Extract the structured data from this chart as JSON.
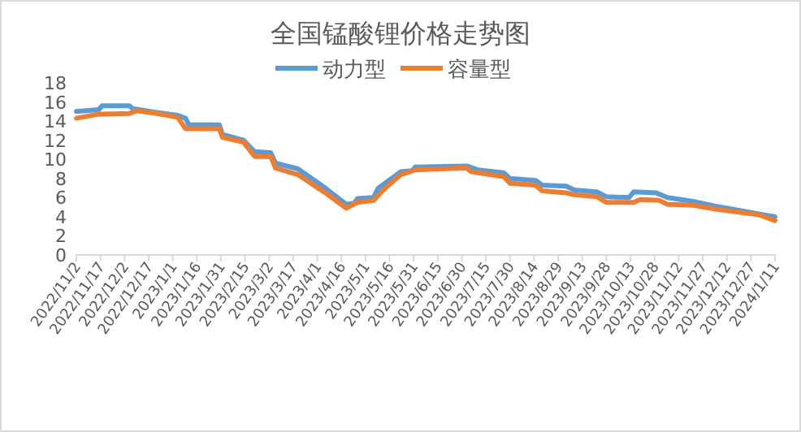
{
  "chart_data": {
    "type": "line",
    "title": "全国锰酸锂价格走势图",
    "legend": "top",
    "grid": false,
    "xlim": [
      "2022-11-02",
      "2024-01-11"
    ],
    "xticks": [
      {
        "value": "2022-11-02",
        "label": "2022/11/2"
      },
      {
        "value": "2022-11-17",
        "label": "2022/11/17"
      },
      {
        "value": "2022-12-02",
        "label": "2022/12/2"
      },
      {
        "value": "2022-12-17",
        "label": "2022/12/17"
      },
      {
        "value": "2023-01-01",
        "label": "2023/1/1"
      },
      {
        "value": "2023-01-16",
        "label": "2023/1/16"
      },
      {
        "value": "2023-01-31",
        "label": "2023/1/31"
      },
      {
        "value": "2023-02-15",
        "label": "2023/2/15"
      },
      {
        "value": "2023-03-02",
        "label": "2023/3/2"
      },
      {
        "value": "2023-03-17",
        "label": "2023/3/17"
      },
      {
        "value": "2023-04-01",
        "label": "2023/4/1"
      },
      {
        "value": "2023-04-16",
        "label": "2023/4/16"
      },
      {
        "value": "2023-05-01",
        "label": "2023/5/1"
      },
      {
        "value": "2023-05-16",
        "label": "2023/5/16"
      },
      {
        "value": "2023-05-31",
        "label": "2023/5/31"
      },
      {
        "value": "2023-06-15",
        "label": "2023/6/15"
      },
      {
        "value": "2023-06-30",
        "label": "2023/6/30"
      },
      {
        "value": "2023-07-15",
        "label": "2023/7/15"
      },
      {
        "value": "2023-07-30",
        "label": "2023/7/30"
      },
      {
        "value": "2023-08-14",
        "label": "2023/8/14"
      },
      {
        "value": "2023-08-29",
        "label": "2023/8/29"
      },
      {
        "value": "2023-09-13",
        "label": "2023/9/13"
      },
      {
        "value": "2023-09-28",
        "label": "2023/9/28"
      },
      {
        "value": "2023-10-13",
        "label": "2023/10/13"
      },
      {
        "value": "2023-10-28",
        "label": "2023/10/28"
      },
      {
        "value": "2023-11-12",
        "label": "2023/11/12"
      },
      {
        "value": "2023-11-27",
        "label": "2023/11/27"
      },
      {
        "value": "2023-12-12",
        "label": "2023/12/12"
      },
      {
        "value": "2023-12-27",
        "label": "2023/12/27"
      },
      {
        "value": "2024-01-11",
        "label": "2024/1/11"
      }
    ],
    "ylim": [
      0,
      18
    ],
    "yticks": [
      0,
      2,
      4,
      6,
      8,
      10,
      12,
      14,
      16,
      18
    ],
    "series": [
      {
        "name": "动力型",
        "color": "#5b9bd5",
        "x": [
          "2022-11-02",
          "2022-11-16",
          "2022-11-18",
          "2022-12-05",
          "2022-12-07",
          "2022-12-22",
          "2023-01-04",
          "2023-01-09",
          "2023-01-11",
          "2023-01-30",
          "2023-02-01",
          "2023-02-14",
          "2023-02-21",
          "2023-03-03",
          "2023-03-06",
          "2023-03-20",
          "2023-04-06",
          "2023-04-19",
          "2023-04-24",
          "2023-04-26",
          "2023-05-06",
          "2023-05-09",
          "2023-05-23",
          "2023-05-30",
          "2023-06-01",
          "2023-07-03",
          "2023-07-10",
          "2023-07-26",
          "2023-07-30",
          "2023-08-15",
          "2023-08-19",
          "2023-09-03",
          "2023-09-08",
          "2023-09-22",
          "2023-09-28",
          "2023-10-12",
          "2023-10-15",
          "2023-10-29",
          "2023-11-05",
          "2023-11-21",
          "2023-12-05",
          "2024-01-01",
          "2024-01-11"
        ],
        "values": [
          15.0,
          15.2,
          15.6,
          15.6,
          15.3,
          14.9,
          14.6,
          14.3,
          13.6,
          13.6,
          12.6,
          12.0,
          10.8,
          10.7,
          9.6,
          9.0,
          7.0,
          5.3,
          5.4,
          5.9,
          6.0,
          7.0,
          8.7,
          8.8,
          9.2,
          9.3,
          8.9,
          8.6,
          8.0,
          7.8,
          7.3,
          7.2,
          6.8,
          6.6,
          6.1,
          6.0,
          6.6,
          6.5,
          6.0,
          5.6,
          5.1,
          4.3,
          4.0
        ]
      },
      {
        "name": "容量型",
        "color": "#ed7d31",
        "x": [
          "2022-11-02",
          "2022-11-15",
          "2022-12-05",
          "2022-12-10",
          "2022-12-22",
          "2023-01-04",
          "2023-01-09",
          "2023-01-30",
          "2023-02-01",
          "2023-02-14",
          "2023-02-21",
          "2023-03-03",
          "2023-03-06",
          "2023-03-20",
          "2023-04-06",
          "2023-04-19",
          "2023-04-26",
          "2023-05-06",
          "2023-05-12",
          "2023-05-23",
          "2023-06-01",
          "2023-07-03",
          "2023-07-06",
          "2023-07-26",
          "2023-07-30",
          "2023-08-15",
          "2023-08-19",
          "2023-09-03",
          "2023-09-08",
          "2023-09-22",
          "2023-09-28",
          "2023-10-15",
          "2023-10-19",
          "2023-10-31",
          "2023-11-05",
          "2023-11-21",
          "2023-12-05",
          "2024-01-01",
          "2024-01-11"
        ],
        "values": [
          14.3,
          14.7,
          14.8,
          15.1,
          14.8,
          14.4,
          13.2,
          13.2,
          12.3,
          11.8,
          10.3,
          10.3,
          9.1,
          8.4,
          6.5,
          4.9,
          5.5,
          5.7,
          6.8,
          8.4,
          8.9,
          9.1,
          8.7,
          8.2,
          7.5,
          7.3,
          6.7,
          6.5,
          6.3,
          6.1,
          5.5,
          5.5,
          5.8,
          5.7,
          5.3,
          5.2,
          4.8,
          4.2,
          3.6
        ]
      }
    ]
  }
}
